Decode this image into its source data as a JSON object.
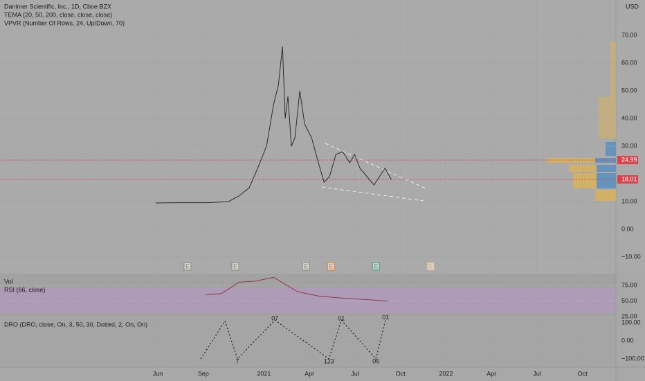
{
  "chart_data": [
    {
      "type": "line",
      "title": "Danimer Scientific, Inc., 1D, Cboe BZX",
      "indicators": [
        "TEMA (20, 50, 200, close, close, close)",
        "VPVR (Number Of Rows, 24, Up/Down, 70)"
      ],
      "currency": "USD",
      "color": "#2b2b2b",
      "x": [
        -0.14,
        1.46,
        3.29,
        4.66,
        5.34,
        6.03,
        6.58,
        7.17,
        7.63,
        7.95,
        8.22,
        8.4,
        8.58,
        8.81,
        9.04,
        9.36,
        9.68,
        10.14,
        10.59,
        10.96,
        11.32,
        11.74,
        12.19,
        12.65,
        12.97,
        13.33,
        13.79,
        14.25,
        14.61,
        14.98,
        15.39
      ],
      "values": [
        9.5,
        9.6,
        9.6,
        10,
        12,
        15,
        22,
        30,
        45,
        52,
        66,
        40,
        48,
        30,
        33,
        50,
        38,
        33,
        24,
        17,
        19,
        27,
        28,
        24,
        27,
        22,
        19,
        16,
        19,
        22,
        18
      ],
      "xlim": [
        -10.4,
        30.2
      ],
      "xticks": [
        {
          "value": 0,
          "label": "Jun"
        },
        {
          "value": 3,
          "label": "Sep"
        },
        {
          "value": 7,
          "label": "2021"
        },
        {
          "value": 10,
          "label": "Apr"
        },
        {
          "value": 13,
          "label": "Jul"
        },
        {
          "value": 16,
          "label": "Oct"
        },
        {
          "value": 19,
          "label": "2022"
        },
        {
          "value": 22,
          "label": "Apr"
        },
        {
          "value": 25,
          "label": "Jul"
        },
        {
          "value": 28,
          "label": "Oct"
        }
      ],
      "ylim": [
        -16,
        82.75
      ],
      "yticks": [
        {
          "value": 70,
          "label": "70.00"
        },
        {
          "value": 60,
          "label": "60.00"
        },
        {
          "value": 50,
          "label": "50.00"
        },
        {
          "value": 40,
          "label": "40.00"
        },
        {
          "value": 30,
          "label": "30.00"
        },
        {
          "value": 10,
          "label": "10.00"
        },
        {
          "value": 0,
          "label": "0.00"
        },
        {
          "value": -10,
          "label": "−10.00"
        }
      ],
      "price_lines": [
        24.99,
        18.01
      ],
      "price_line_color": "#d9434b",
      "events": [
        "E",
        "E",
        "E",
        "E",
        "E",
        "E"
      ],
      "event_x": [
        1.96,
        5.11,
        9.77,
        11.42,
        14.38,
        17.99
      ],
      "event_colors": [
        "#888",
        "#888",
        "#888",
        "#e0803a",
        "#2f9e8a",
        "#d8b090"
      ]
    },
    {
      "type": "line",
      "label": "Vol",
      "title": "RSI (66, close)",
      "color": "#8a3a4a",
      "x": [
        3.15,
        4.2,
        5.34,
        6.48,
        7.63,
        8.31,
        9.22,
        10.59,
        11.96,
        13.33,
        15.16
      ],
      "values": [
        60,
        62,
        80,
        82,
        88,
        78,
        65,
        58,
        55,
        53,
        50
      ],
      "ylim": [
        24,
        93.9
      ],
      "yticks": [
        {
          "value": 75,
          "label": "75.00"
        },
        {
          "value": 50,
          "label": "50.00"
        },
        {
          "value": 25,
          "label": "25.00"
        }
      ]
    },
    {
      "type": "line",
      "title": "DRO (DRO, close, On, 3, 50, 30, Dotted, 2, On, On)",
      "color": "#222",
      "x": [
        2.83,
        4.43,
        5.25,
        7.72,
        11.28,
        12.1,
        14.38,
        15.02
      ],
      "values": [
        -100,
        110,
        -100,
        115,
        -100,
        115,
        -100,
        120
      ],
      "point_labels": [
        null,
        null,
        "7",
        "07",
        "123",
        "01",
        "06",
        "01"
      ],
      "ylim": [
        -146,
        130.8
      ],
      "yticks": [
        {
          "value": 100,
          "label": "100.00"
        },
        {
          "value": 0,
          "label": "0.00"
        },
        {
          "value": -100,
          "label": "−100.00"
        }
      ]
    }
  ]
}
